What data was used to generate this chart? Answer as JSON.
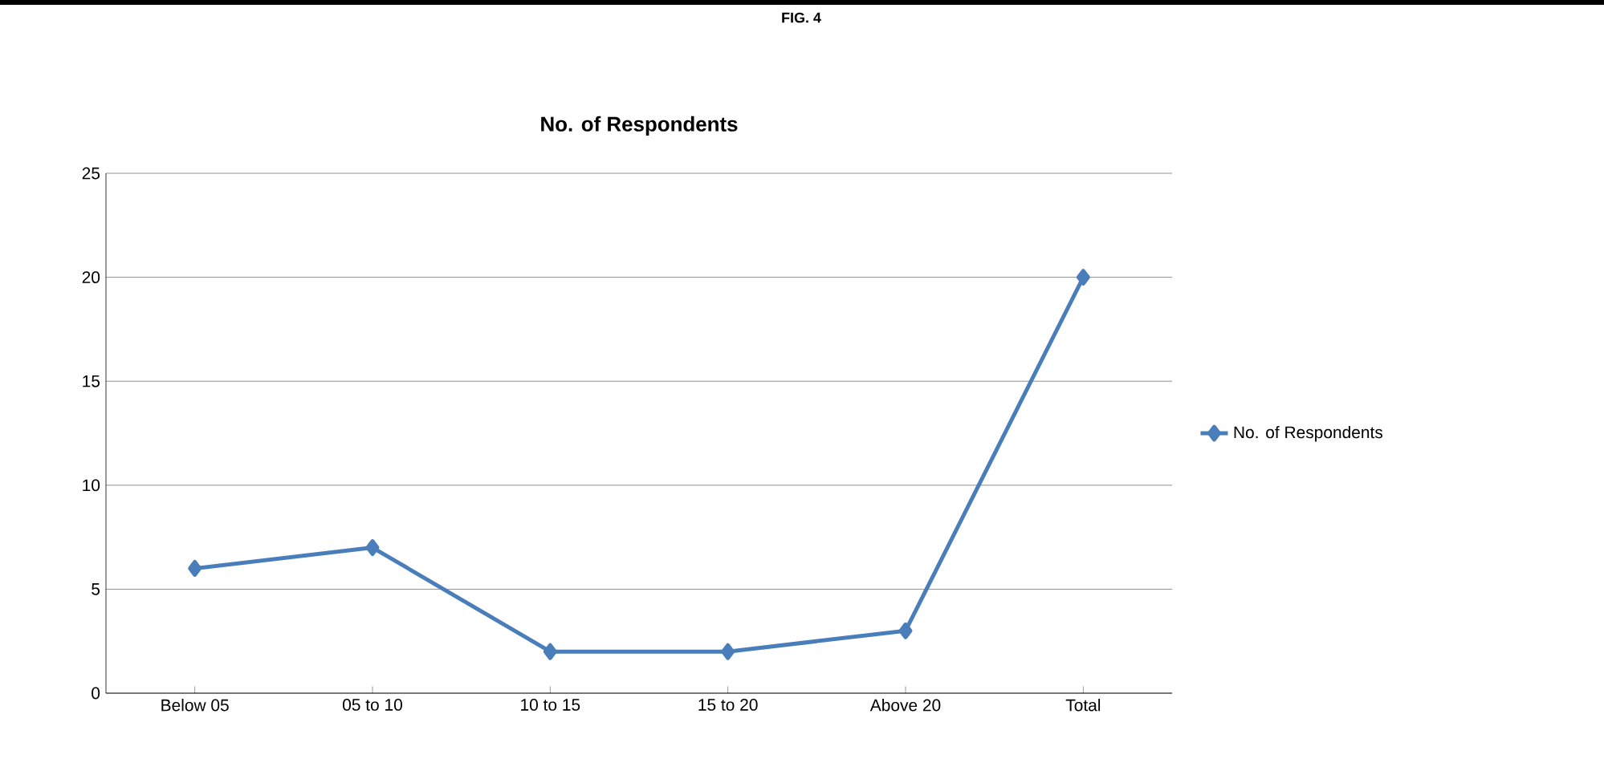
{
  "chart_data": {
    "type": "line",
    "title": "No. of Respondents",
    "annotations": [
      "FIG. 4"
    ],
    "categories": [
      "Below 05",
      "05 to 10",
      "10 to 15",
      "15 to 20",
      "Above 20",
      "Total"
    ],
    "series": [
      {
        "name": "No. of Respondents",
        "color": "#4a7ebb",
        "values": [
          6,
          7,
          2,
          2,
          3,
          20
        ]
      }
    ],
    "ylim": [
      0,
      25
    ],
    "yticks": [
      0,
      5,
      10,
      15,
      20,
      25
    ],
    "grid": "y",
    "legend": "right",
    "marker": "diamond",
    "line_style": "solid"
  }
}
